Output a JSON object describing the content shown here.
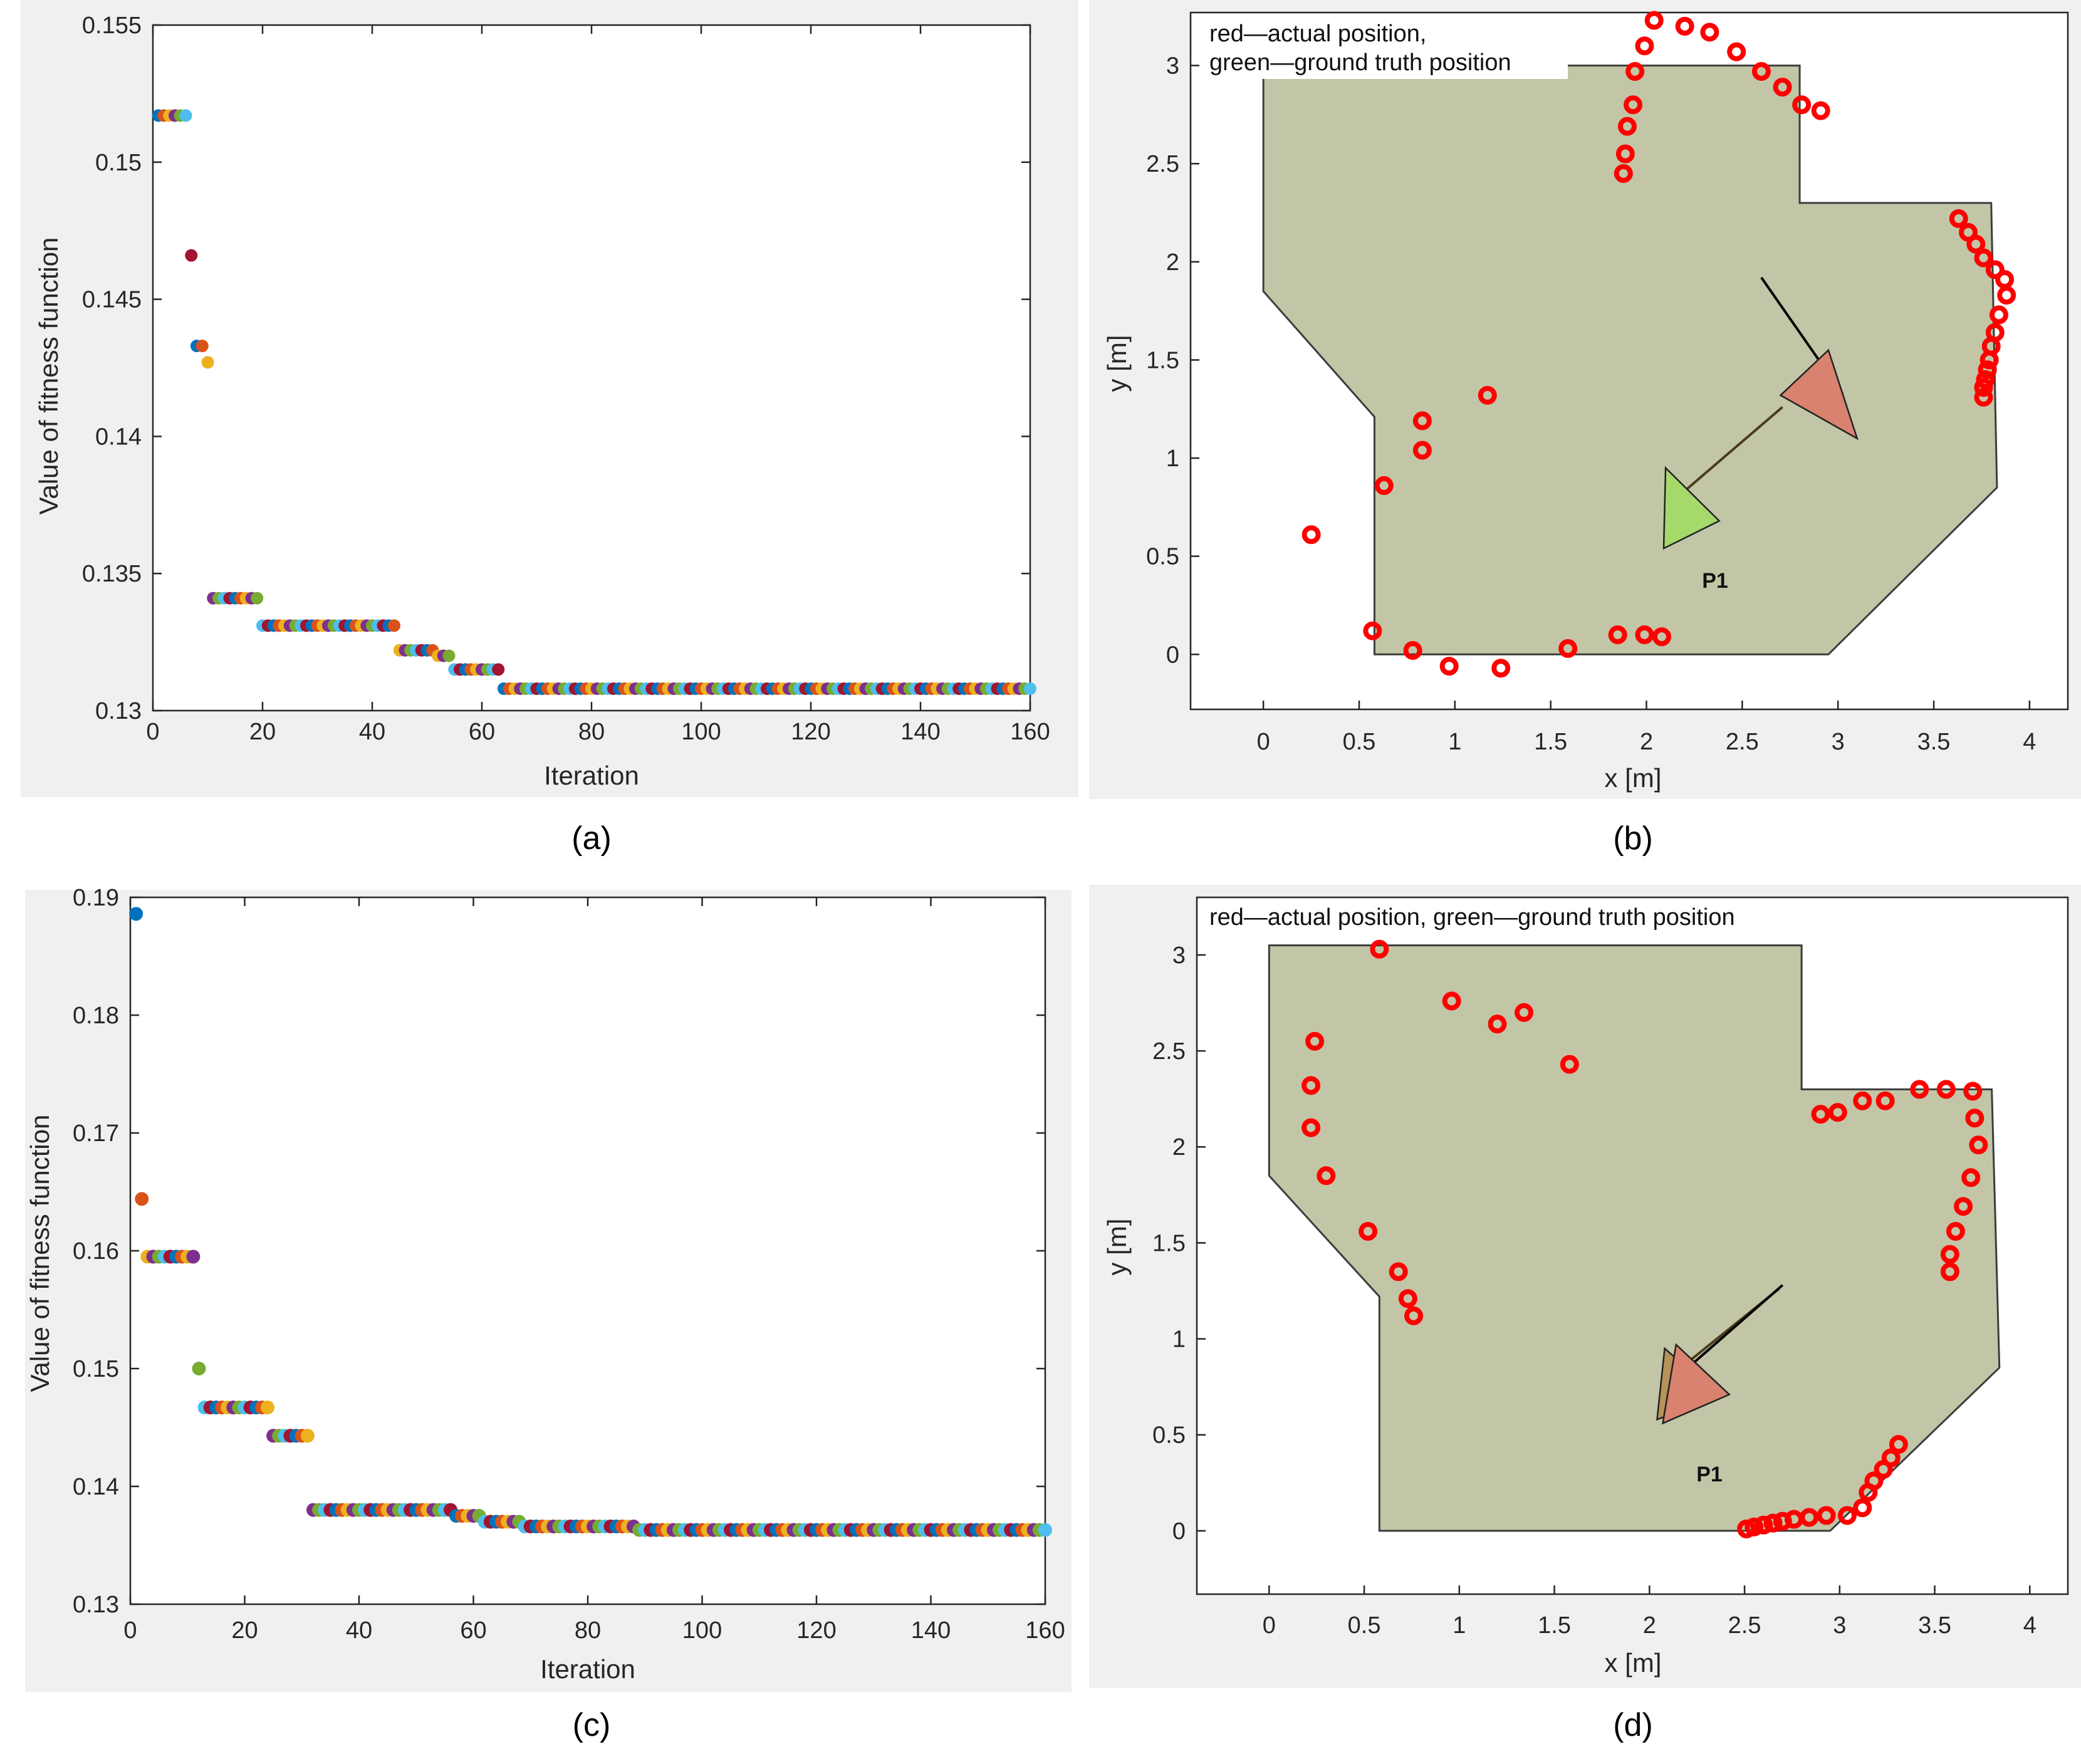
{
  "chart_data": [
    {
      "id": "a",
      "type": "scatter",
      "caption": "(a)",
      "xlabel": "Iteration",
      "ylabel": "Value of fitness function",
      "xlim": [
        0,
        160
      ],
      "ylim": [
        0.13,
        0.155
      ],
      "xticks": [
        0,
        20,
        40,
        60,
        80,
        100,
        120,
        140,
        160
      ],
      "yticks": [
        0.13,
        0.135,
        0.14,
        0.145,
        0.15,
        0.155
      ],
      "ytick_labels": [
        "0.13",
        "0.135",
        "0.14",
        "0.145",
        "0.15",
        "0.155"
      ],
      "levels": [
        {
          "from": 1,
          "to": 6,
          "y": 0.1517
        },
        {
          "from": 7,
          "to": 7,
          "y": 0.1466
        },
        {
          "from": 8,
          "to": 9,
          "y": 0.1433
        },
        {
          "from": 10,
          "to": 10,
          "y": 0.1427
        },
        {
          "from": 11,
          "to": 19,
          "y": 0.1341
        },
        {
          "from": 20,
          "to": 44,
          "y": 0.1331
        },
        {
          "from": 45,
          "to": 51,
          "y": 0.1322
        },
        {
          "from": 52,
          "to": 54,
          "y": 0.132
        },
        {
          "from": 55,
          "to": 63,
          "y": 0.1315
        },
        {
          "from": 64,
          "to": 160,
          "y": 0.1308
        }
      ]
    },
    {
      "id": "b",
      "type": "scatter",
      "caption": "(b)",
      "xlabel": "x [m]",
      "ylabel": "y [m]",
      "xlim": [
        -0.38,
        4.2
      ],
      "ylim": [
        -0.28,
        3.27
      ],
      "xticks": [
        0,
        0.5,
        1,
        1.5,
        2,
        2.5,
        3,
        3.5,
        4
      ],
      "xtick_labels": [
        "0",
        "0.5",
        "1",
        "1.5",
        "2",
        "2.5",
        "3",
        "3.5",
        "4"
      ],
      "yticks": [
        0,
        0.5,
        1,
        1.5,
        2,
        2.5,
        3
      ],
      "ytick_labels": [
        "0",
        "0.5",
        "1",
        "1.5",
        "2",
        "2.5",
        "3"
      ],
      "legend": [
        "red—actual position,",
        "green—ground truth position"
      ],
      "room_polygon": [
        [
          0,
          3.0
        ],
        [
          2.8,
          3.0
        ],
        [
          2.8,
          2.3
        ],
        [
          3.8,
          2.3
        ],
        [
          3.83,
          0.85
        ],
        [
          2.95,
          0
        ],
        [
          0.58,
          0
        ],
        [
          0.58,
          1.21
        ],
        [
          0,
          1.85
        ]
      ],
      "points": [
        [
          0.25,
          0.61
        ],
        [
          0.57,
          0.12
        ],
        [
          0.63,
          0.86
        ],
        [
          0.78,
          0.02
        ],
        [
          0.83,
          1.19
        ],
        [
          0.83,
          1.04
        ],
        [
          0.97,
          -0.06
        ],
        [
          1.17,
          1.32
        ],
        [
          1.24,
          -0.07
        ],
        [
          1.59,
          0.03
        ],
        [
          1.85,
          0.1
        ],
        [
          1.99,
          0.1
        ],
        [
          2.08,
          0.09
        ],
        [
          1.88,
          2.45
        ],
        [
          1.89,
          2.55
        ],
        [
          1.9,
          2.69
        ],
        [
          1.93,
          2.8
        ],
        [
          1.94,
          2.97
        ],
        [
          1.99,
          3.1
        ],
        [
          2.04,
          3.23
        ],
        [
          2.2,
          3.2
        ],
        [
          2.33,
          3.17
        ],
        [
          2.47,
          3.07
        ],
        [
          2.6,
          2.97
        ],
        [
          2.71,
          2.89
        ],
        [
          2.81,
          2.8
        ],
        [
          2.91,
          2.77
        ],
        [
          3.63,
          2.22
        ],
        [
          3.68,
          2.15
        ],
        [
          3.72,
          2.09
        ],
        [
          3.76,
          2.02
        ],
        [
          3.82,
          1.96
        ],
        [
          3.87,
          1.91
        ],
        [
          3.88,
          1.83
        ],
        [
          3.84,
          1.73
        ],
        [
          3.82,
          1.64
        ],
        [
          3.8,
          1.57
        ],
        [
          3.79,
          1.5
        ],
        [
          3.78,
          1.45
        ],
        [
          3.77,
          1.4
        ],
        [
          3.76,
          1.36
        ],
        [
          3.76,
          1.31
        ]
      ],
      "point_label": "P1",
      "arrows": [
        {
          "role": "actual",
          "tip": [
            2.7,
            1.32
          ],
          "base1": [
            2.95,
            1.55
          ],
          "base2": [
            3.1,
            1.1
          ],
          "tail": [
            2.6,
            1.92
          ]
        },
        {
          "role": "ground_truth",
          "tip": [
            2.38,
            0.68
          ],
          "base1": [
            2.09,
            0.54
          ],
          "base2": [
            2.1,
            0.95
          ],
          "tail": [
            2.71,
            1.26
          ]
        }
      ]
    },
    {
      "id": "c",
      "type": "scatter",
      "caption": "(c)",
      "xlabel": "Iteration",
      "ylabel": "Value of fitness function",
      "xlim": [
        0,
        160
      ],
      "ylim": [
        0.13,
        0.19
      ],
      "xticks": [
        0,
        20,
        40,
        60,
        80,
        100,
        120,
        140,
        160
      ],
      "yticks": [
        0.13,
        0.14,
        0.15,
        0.16,
        0.17,
        0.18,
        0.19
      ],
      "ytick_labels": [
        "0.13",
        "0.14",
        "0.15",
        "0.16",
        "0.17",
        "0.18",
        "0.19"
      ],
      "levels": [
        {
          "from": 1,
          "to": 1,
          "y": 0.1886
        },
        {
          "from": 2,
          "to": 2,
          "y": 0.1644
        },
        {
          "from": 3,
          "to": 11,
          "y": 0.1595
        },
        {
          "from": 12,
          "to": 12,
          "y": 0.15
        },
        {
          "from": 13,
          "to": 24,
          "y": 0.1467
        },
        {
          "from": 25,
          "to": 31,
          "y": 0.1443
        },
        {
          "from": 32,
          "to": 56,
          "y": 0.138
        },
        {
          "from": 57,
          "to": 61,
          "y": 0.1375
        },
        {
          "from": 62,
          "to": 68,
          "y": 0.137
        },
        {
          "from": 69,
          "to": 88,
          "y": 0.1366
        },
        {
          "from": 89,
          "to": 160,
          "y": 0.1363
        }
      ]
    },
    {
      "id": "d",
      "type": "scatter",
      "caption": "(d)",
      "xlabel": "x [m]",
      "ylabel": "y [m]",
      "xlim": [
        -0.38,
        4.2
      ],
      "ylim": [
        -0.33,
        3.3
      ],
      "xticks": [
        0,
        0.5,
        1,
        1.5,
        2,
        2.5,
        3,
        3.5,
        4
      ],
      "xtick_labels": [
        "0",
        "0.5",
        "1",
        "1.5",
        "2",
        "2.5",
        "3",
        "3.5",
        "4"
      ],
      "yticks": [
        0,
        0.5,
        1,
        1.5,
        2,
        2.5,
        3
      ],
      "ytick_labels": [
        "0",
        "0.5",
        "1",
        "1.5",
        "2",
        "2.5",
        "3"
      ],
      "legend": [
        "red—actual position, green—ground truth position"
      ],
      "room_polygon": [
        [
          0,
          3.05
        ],
        [
          2.8,
          3.05
        ],
        [
          2.8,
          2.3
        ],
        [
          3.8,
          2.3
        ],
        [
          3.84,
          0.85
        ],
        [
          2.95,
          0
        ],
        [
          0.58,
          0
        ],
        [
          0.58,
          1.22
        ],
        [
          0,
          1.85
        ]
      ],
      "points": [
        [
          0.58,
          3.03
        ],
        [
          0.24,
          2.55
        ],
        [
          0.22,
          2.32
        ],
        [
          0.22,
          2.1
        ],
        [
          0.3,
          1.85
        ],
        [
          0.52,
          1.56
        ],
        [
          0.68,
          1.35
        ],
        [
          0.73,
          1.21
        ],
        [
          0.76,
          1.12
        ],
        [
          0.96,
          2.76
        ],
        [
          1.2,
          2.64
        ],
        [
          1.34,
          2.7
        ],
        [
          1.58,
          2.43
        ],
        [
          2.51,
          0.01
        ],
        [
          2.55,
          0.02
        ],
        [
          2.6,
          0.03
        ],
        [
          2.65,
          0.04
        ],
        [
          2.7,
          0.05
        ],
        [
          2.76,
          0.06
        ],
        [
          2.84,
          0.07
        ],
        [
          2.93,
          0.08
        ],
        [
          3.04,
          0.08
        ],
        [
          3.12,
          0.12
        ],
        [
          3.15,
          0.2
        ],
        [
          3.18,
          0.26
        ],
        [
          3.23,
          0.32
        ],
        [
          3.27,
          0.38
        ],
        [
          3.31,
          0.45
        ],
        [
          2.9,
          2.17
        ],
        [
          2.99,
          2.18
        ],
        [
          3.12,
          2.24
        ],
        [
          3.24,
          2.24
        ],
        [
          3.42,
          2.3
        ],
        [
          3.56,
          2.3
        ],
        [
          3.7,
          2.29
        ],
        [
          3.71,
          2.15
        ],
        [
          3.73,
          2.01
        ],
        [
          3.69,
          1.84
        ],
        [
          3.65,
          1.69
        ],
        [
          3.61,
          1.56
        ],
        [
          3.58,
          1.44
        ],
        [
          3.58,
          1.35
        ]
      ],
      "point_label": "P1",
      "arrows": [
        {
          "role": "ground_truth",
          "tip": [
            2.37,
            0.7
          ],
          "base1": [
            2.04,
            0.58
          ],
          "base2": [
            2.08,
            0.95
          ],
          "tail": [
            2.68,
            1.26
          ]
        },
        {
          "role": "actual",
          "tip": [
            2.42,
            0.71
          ],
          "base1": [
            2.07,
            0.56
          ],
          "base2": [
            2.14,
            0.97
          ],
          "tail": [
            2.7,
            1.28
          ]
        }
      ]
    }
  ],
  "colors": {
    "series_palette": [
      "#0072BD",
      "#D95319",
      "#EDB120",
      "#7E2F8E",
      "#77AC30",
      "#4DBEEE",
      "#A2142F"
    ],
    "room_fill": "#c2c6a6",
    "room_stroke": "#3d3d3d",
    "actual_marker": "#ff0000",
    "actual_arrow": "#d9826f",
    "truth_arrow": "#a5d96a",
    "truth_arrow_d": "#b7925a",
    "panel_background": "#f0f0f0",
    "axes_color": "#262626"
  }
}
